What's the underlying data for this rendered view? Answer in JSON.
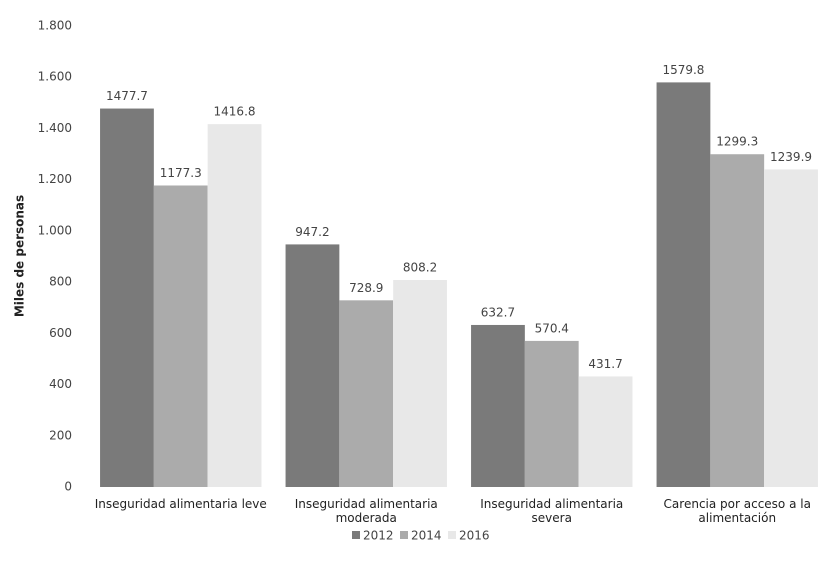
{
  "chart_data": {
    "type": "bar",
    "y_label": "Miles de personas",
    "categories": [
      "Inseguridad alimentaria leve",
      "Inseguridad alimentaria moderada",
      "Inseguridad alimentaria severa",
      "Carencia por acceso a la alimentación"
    ],
    "series": [
      {
        "name": "2012",
        "color": "#7a7a7a",
        "values": [
          1477.7,
          947.2,
          632.7,
          1579.8
        ]
      },
      {
        "name": "2014",
        "color": "#ababab",
        "values": [
          1177.3,
          728.9,
          570.4,
          1299.3
        ]
      },
      {
        "name": "2016",
        "color": "#e8e8e8",
        "values": [
          1416.8,
          808.2,
          431.7,
          1239.9
        ]
      }
    ],
    "ylim": [
      0,
      1800
    ],
    "yticks": [
      0,
      200,
      400,
      600,
      800,
      {
        "value": 1000,
        "label": "1.000"
      },
      {
        "value": 1200,
        "label": "1.200"
      },
      {
        "value": 1400,
        "label": "1.400"
      },
      {
        "value": 1600,
        "label": "1.600"
      },
      {
        "value": 1800,
        "label": "1.800"
      }
    ],
    "grid": false
  }
}
